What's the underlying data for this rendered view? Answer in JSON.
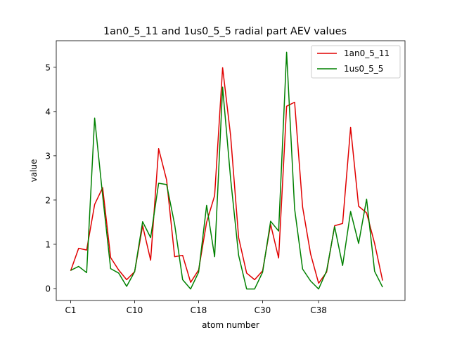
{
  "chart_data": {
    "type": "line",
    "title": "1an0_5_11 and 1us0_5_5 radial part AEV values",
    "xlabel": "atom number",
    "ylabel": "value",
    "x_tick_labels": [
      {
        "label": "C1",
        "index": 0
      },
      {
        "label": "C10",
        "index": 8
      },
      {
        "label": "C18",
        "index": 16
      },
      {
        "label": "C30",
        "index": 24
      },
      {
        "label": "C38",
        "index": 31
      }
    ],
    "y_ticks": [
      0,
      1,
      2,
      3,
      4,
      5
    ],
    "xlim": [
      -1.8,
      41.8
    ],
    "ylim": [
      -0.27,
      5.6
    ],
    "grid": false,
    "legend_position": "top-right",
    "series": [
      {
        "name": "1an0_5_11",
        "color": "#e00000",
        "values": [
          0.4,
          0.91,
          0.87,
          1.9,
          2.28,
          0.7,
          0.42,
          0.2,
          0.38,
          1.42,
          0.64,
          3.16,
          2.45,
          0.72,
          0.75,
          0.14,
          0.42,
          1.5,
          2.1,
          4.99,
          3.45,
          1.15,
          0.35,
          0.2,
          0.4,
          1.45,
          0.69,
          4.12,
          4.21,
          1.84,
          0.78,
          0.12,
          0.37,
          1.42,
          1.47,
          3.64,
          1.86,
          1.71,
          1.02,
          0.18
        ]
      },
      {
        "name": "1us0_5_5",
        "color": "#008000",
        "values": [
          0.41,
          0.5,
          0.36,
          3.85,
          2.1,
          0.45,
          0.35,
          0.05,
          0.38,
          1.51,
          1.15,
          2.38,
          2.35,
          1.45,
          0.2,
          -0.01,
          0.37,
          1.88,
          0.72,
          4.55,
          2.48,
          0.75,
          -0.01,
          -0.01,
          0.37,
          1.52,
          1.3,
          5.34,
          1.8,
          0.44,
          0.17,
          -0.01,
          0.4,
          1.4,
          0.52,
          1.74,
          1.02,
          2.02,
          0.39,
          0.03
        ]
      }
    ]
  }
}
